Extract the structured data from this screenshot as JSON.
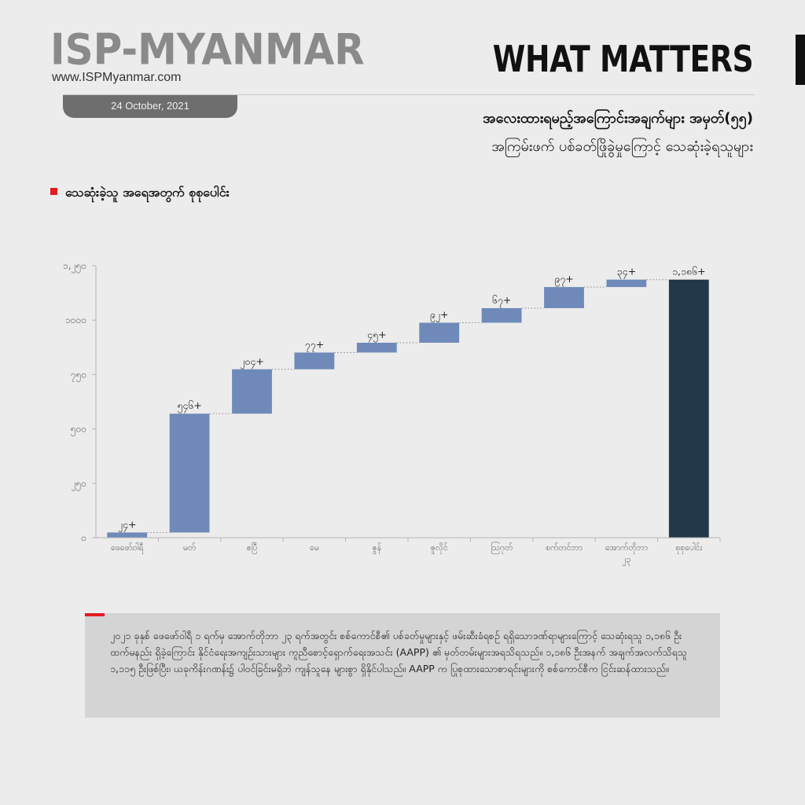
{
  "brand": {
    "name": "ISP-MYANMAR",
    "url": "www.ISPMyanmar.com",
    "date": "24 October, 2021",
    "series_title": "WHAT MATTERS"
  },
  "colors": {
    "accent": "#e31b23",
    "bar": "#6f8ab9",
    "total_bar": "#233848",
    "pill": "#6e6e6e",
    "note_bg": "#d4d4d4"
  },
  "heading": {
    "line1": "အလေးထားရမည့်အကြောင်းအချက်များ အမှတ်(၅၅)",
    "line2": "အကြမ်းဖက် ပစ်ခတ်ဖြိုခွဲမှုကြောင့် သေဆုံးခဲ့ရသူများ"
  },
  "section_title": "သေဆုံးခဲ့သူ အရေအတွက် စုစုပေါင်း",
  "chart_data": {
    "type": "bar",
    "subtype": "waterfall",
    "categories": [
      "ဖေဖော်ဝါရီ",
      "မတ်",
      "ဧပြီ",
      "မေ",
      "ဇွန်",
      "ဇူလိုင်",
      "ဩဂုတ်",
      "စက်တင်ဘာ",
      "အောက်တိုဘာ ၂၃",
      "စုစုပေါင်း"
    ],
    "values": [
      24,
      546,
      204,
      77,
      45,
      92,
      67,
      97,
      34,
      1186
    ],
    "value_labels": [
      "၂၄+",
      "၅၄၆+",
      "၂၀၄+",
      "၇၇+",
      "၄၅+",
      "၉၂+",
      "၆၇+",
      "၉၇+",
      "၃၄+",
      "၁,၁၈၆+"
    ],
    "is_total": [
      false,
      false,
      false,
      false,
      false,
      false,
      false,
      false,
      false,
      true
    ],
    "y_ticks": [
      0,
      250,
      500,
      750,
      1000,
      1250
    ],
    "y_tick_labels": [
      "၀",
      "၂၅၀",
      "၅၀၀",
      "၇၅၀",
      "၁၀၀၀",
      "၁,၂၅၀"
    ],
    "ylim": [
      0,
      1250
    ],
    "grid": false,
    "legend": "none"
  },
  "note": "၂၀၂၁ ခုနှစ် ဖေဖော်ဝါရီ ၁ ရက်မှ အောက်တိုဘာ ၂၃ ရက်အတွင်း စစ်ကောင်စီ၏ ပစ်ခတ်မှုများနှင့် ဖမ်းဆီးခံရစဉ် ရရှိသောဒဏ်ရာများကြောင့် သေဆုံးရသူ ၁,၁၈၆ ဦးထက်မနည်း ရှိခဲ့ကြောင်း နိုင်ငံရေးအကျဉ်းသားများ ကူညီစောင့်ရှောက်ရေးအသင်း (AAPP) ၏ မှတ်တမ်းများအရသိရသည်။ ၁,၁၈၆ ဦးအနက် အချက်အလက်သိရသူ ၁,၁၁၅ ဦးဖြစ်ပြီး၊ ယခုကိန်းဂဏန်း၌ ပါဝင်ခြင်းမရှိဘဲ ကျန်သူနေ များစွာ ရှိနိုင်ပါသည်။ AAPP က ပြုစုထားသောစာရင်းများကို စစ်ကောင်စီက ငြင်းဆန်ထားသည်။"
}
